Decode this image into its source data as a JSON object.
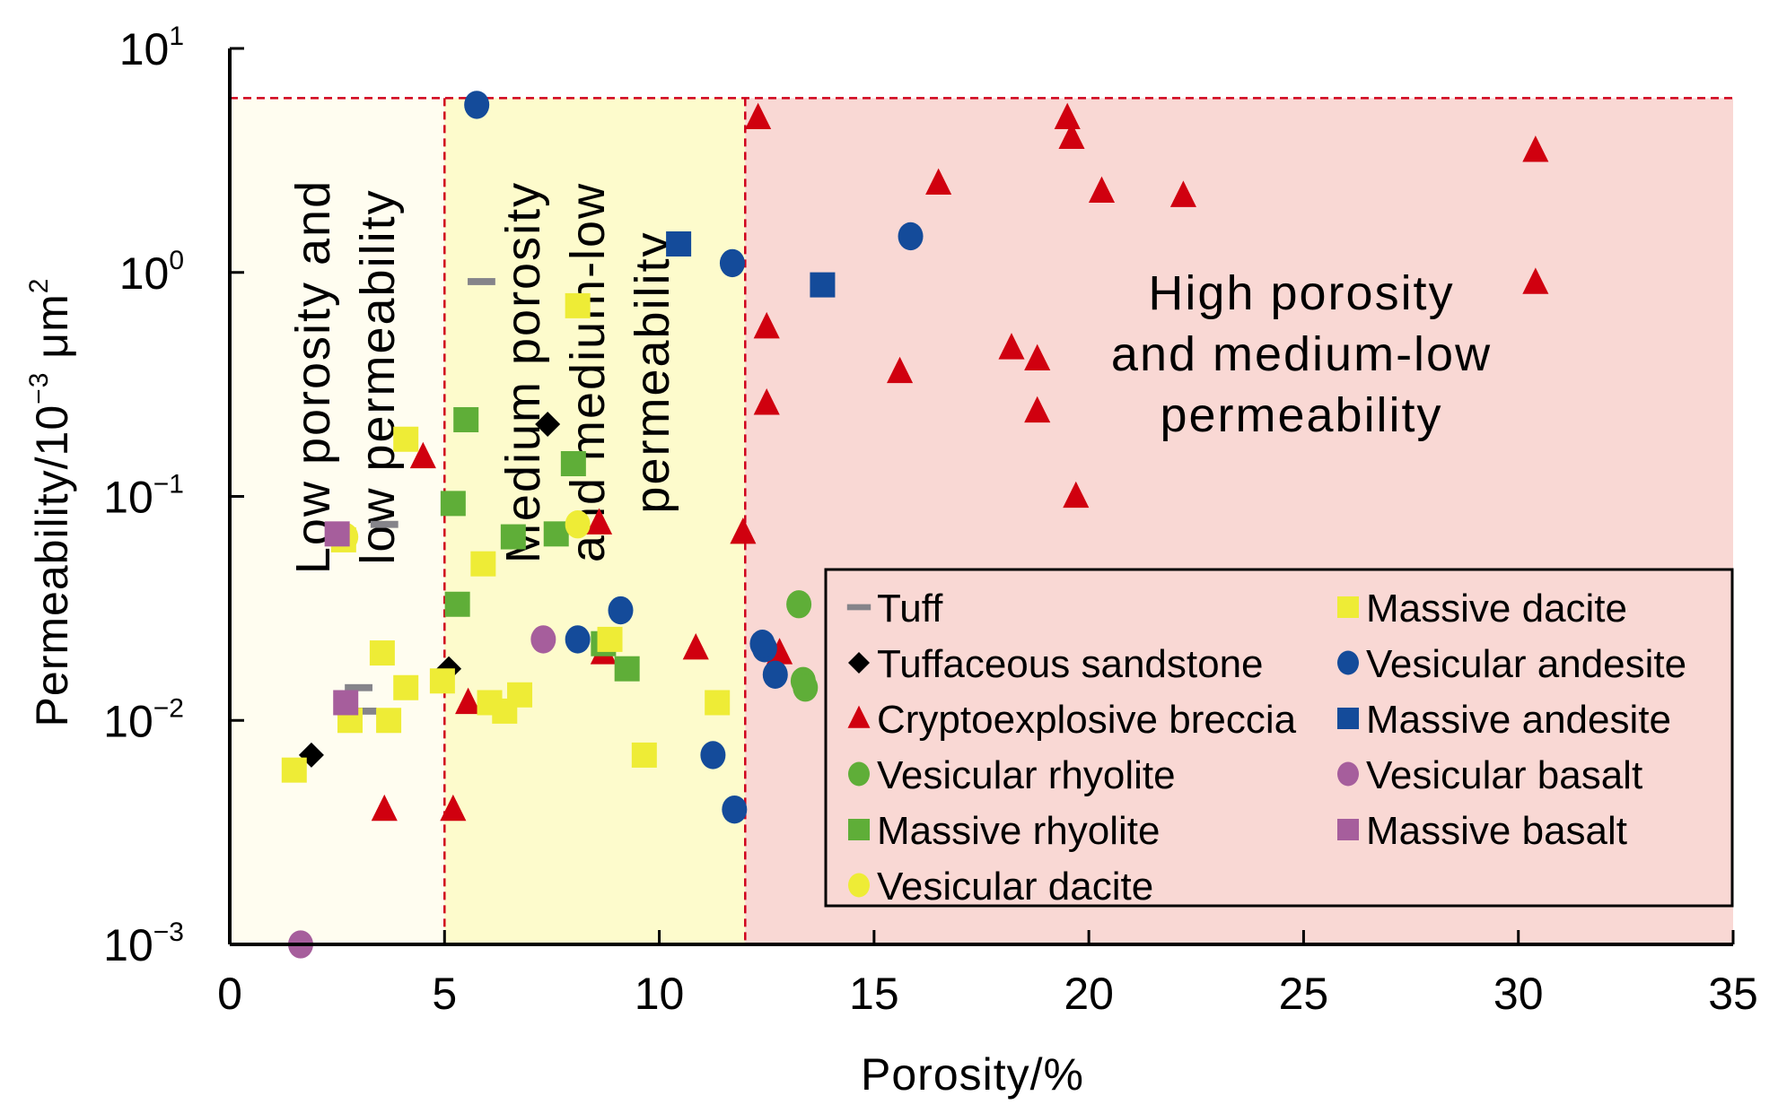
{
  "chart_data": {
    "type": "scatter",
    "title": "",
    "xlabel": "Porosity/%",
    "ylabel": "Permeability/10⁻³ μm²",
    "ylabel_parts": {
      "base": "Permeability/10",
      "exp": "−3",
      "unit": " μm",
      "unit_exp": "2"
    },
    "xlim": [
      0,
      35
    ],
    "ylim": [
      0.001,
      10
    ],
    "yscale": "log",
    "grid": false,
    "x_ticks": [
      0,
      5,
      10,
      15,
      20,
      25,
      30,
      35
    ],
    "x_tick_labels": [
      "0",
      "5",
      "10",
      "15",
      "20",
      "25",
      "30",
      "35"
    ],
    "y_ticks": [
      10,
      1,
      0.1,
      0.01,
      0.001
    ],
    "y_tick_labels": [
      {
        "base": "10",
        "exp": "1"
      },
      {
        "base": "10",
        "exp": "0"
      },
      {
        "base": "10",
        "exp": "−1"
      },
      {
        "base": "10",
        "exp": "−2"
      },
      {
        "base": "10",
        "exp": "−3"
      }
    ],
    "zones": [
      {
        "name": "Low porosity and low permeability",
        "x_range": [
          0,
          5
        ],
        "color": "#fffdf0",
        "label_lines": [
          "Low porosity and",
          "low permeability"
        ]
      },
      {
        "name": "Medium porosity and medium-low permeability",
        "x_range": [
          5,
          12
        ],
        "color": "#fdfbcc",
        "label_lines": [
          "Medium porosity",
          "and medium-low",
          "permeability"
        ]
      },
      {
        "name": "High porosity and medium-low permeability",
        "x_range": [
          12,
          35
        ],
        "color": "#f9d8d4",
        "label_lines": [
          "High porosity",
          "and medium-low",
          "permeability"
        ]
      }
    ],
    "threshold_lines": {
      "porosity": [
        5,
        12
      ],
      "permeability_top": 6,
      "color": "#d0021b"
    },
    "legend_placement": "bottom-right",
    "series": [
      {
        "name": "Tuff",
        "marker": "dash",
        "color": "#85848a",
        "points": [
          [
            5.86,
            0.91
          ],
          [
            3.6,
            0.075
          ],
          [
            3.0,
            0.014
          ],
          [
            3.1,
            0.011
          ]
        ]
      },
      {
        "name": "Tuffaceous sandstone",
        "marker": "diamond",
        "color": "#000000",
        "points": [
          [
            1.9,
            0.007
          ],
          [
            5.1,
            0.017
          ],
          [
            7.4,
            0.21
          ]
        ]
      },
      {
        "name": "Cryptoexplosive breccia",
        "marker": "triangle",
        "color": "#d0000f",
        "points": [
          [
            12.3,
            4.9
          ],
          [
            19.5,
            4.9
          ],
          [
            19.6,
            4.0
          ],
          [
            30.4,
            3.5
          ],
          [
            16.5,
            2.5
          ],
          [
            20.3,
            2.3
          ],
          [
            22.2,
            2.2
          ],
          [
            30.4,
            0.9
          ],
          [
            12.5,
            0.57
          ],
          [
            18.2,
            0.46
          ],
          [
            18.8,
            0.41
          ],
          [
            15.6,
            0.36
          ],
          [
            12.5,
            0.26
          ],
          [
            18.8,
            0.24
          ],
          [
            4.5,
            0.15
          ],
          [
            19.7,
            0.1
          ],
          [
            8.6,
            0.076
          ],
          [
            11.95,
            0.069
          ],
          [
            10.85,
            0.021
          ],
          [
            8.7,
            0.02
          ],
          [
            12.8,
            0.02
          ],
          [
            5.55,
            0.012
          ],
          [
            3.6,
            0.004
          ],
          [
            5.2,
            0.004
          ]
        ]
      },
      {
        "name": "Vesicular rhyolite",
        "marker": "circle",
        "color": "#5fae38",
        "points": [
          [
            13.25,
            0.033
          ],
          [
            13.35,
            0.015
          ],
          [
            13.4,
            0.014
          ]
        ]
      },
      {
        "name": "Massive rhyolite",
        "marker": "square",
        "color": "#5fae38",
        "points": [
          [
            5.5,
            0.22
          ],
          [
            5.2,
            0.093
          ],
          [
            8.0,
            0.14
          ],
          [
            7.6,
            0.068
          ],
          [
            6.6,
            0.066
          ],
          [
            5.3,
            0.033
          ],
          [
            8.7,
            0.022
          ],
          [
            9.25,
            0.017
          ]
        ]
      },
      {
        "name": "Vesicular dacite",
        "marker": "circle",
        "color": "#eeec36",
        "points": [
          [
            2.7,
            0.066
          ],
          [
            8.1,
            0.075
          ]
        ]
      },
      {
        "name": "Massive dacite",
        "marker": "square",
        "color": "#eeec36",
        "points": [
          [
            4.1,
            0.18
          ],
          [
            2.65,
            0.064
          ],
          [
            5.9,
            0.05
          ],
          [
            3.55,
            0.02
          ],
          [
            4.95,
            0.015
          ],
          [
            4.1,
            0.014
          ],
          [
            2.8,
            0.01
          ],
          [
            3.7,
            0.01
          ],
          [
            6.05,
            0.012
          ],
          [
            6.75,
            0.013
          ],
          [
            6.4,
            0.011
          ],
          [
            11.35,
            0.012
          ],
          [
            8.85,
            0.023
          ],
          [
            9.65,
            0.007
          ],
          [
            1.5,
            0.006
          ],
          [
            8.1,
            0.71
          ]
        ]
      },
      {
        "name": "Vesicular andesite",
        "marker": "circle",
        "color": "#144b9a",
        "points": [
          [
            5.75,
            5.6
          ],
          [
            11.7,
            1.1
          ],
          [
            15.85,
            1.45
          ],
          [
            9.1,
            0.031
          ],
          [
            8.1,
            0.023
          ],
          [
            12.45,
            0.021
          ],
          [
            12.4,
            0.022
          ],
          [
            12.7,
            0.016
          ],
          [
            11.25,
            0.007
          ],
          [
            11.75,
            0.004
          ]
        ]
      },
      {
        "name": "Massive andesite",
        "marker": "square",
        "color": "#144b9a",
        "points": [
          [
            10.45,
            1.34
          ],
          [
            13.8,
            0.88
          ]
        ]
      },
      {
        "name": "Vesicular basalt",
        "marker": "circle",
        "color": "#a65e9c",
        "points": [
          [
            7.3,
            0.023
          ],
          [
            1.65,
            0.001
          ]
        ]
      },
      {
        "name": "Massive basalt",
        "marker": "square",
        "color": "#a65e9c",
        "points": [
          [
            2.5,
            0.068
          ],
          [
            2.7,
            0.012
          ]
        ]
      }
    ],
    "legend_columns": [
      [
        "Tuff",
        "Tuffaceous sandstone",
        "Cryptoexplosive breccia",
        "Vesicular rhyolite",
        "Massive rhyolite",
        "Vesicular dacite"
      ],
      [
        "Massive dacite",
        "Vesicular andesite",
        "Massive andesite",
        "Vesicular basalt",
        "Massive basalt"
      ]
    ]
  }
}
